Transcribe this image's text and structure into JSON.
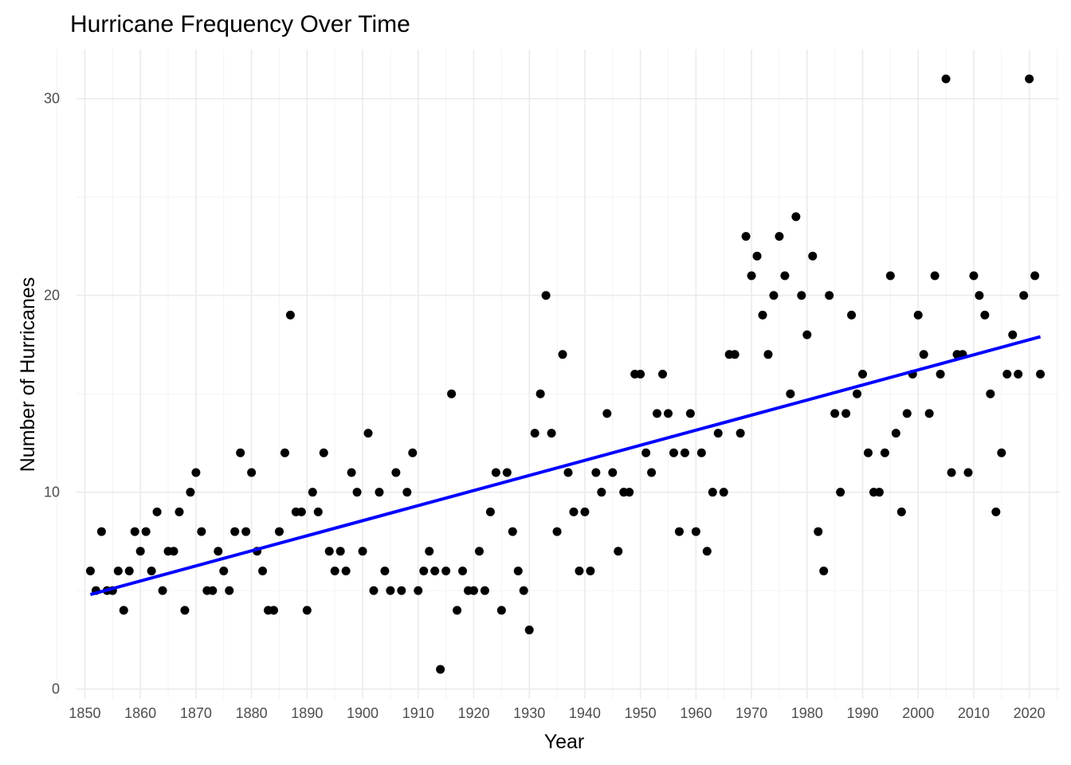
{
  "chart_data": {
    "type": "scatter",
    "title": "Hurricane Frequency Over Time",
    "xlabel": "Year",
    "ylabel": "Number of Hurricanes",
    "xlim": [
      1848.5,
      2025.5
    ],
    "ylim": [
      -0.5,
      32.5
    ],
    "x_ticks": [
      "1850",
      "1860",
      "1870",
      "1880",
      "1890",
      "1900",
      "1910",
      "1920",
      "1930",
      "1940",
      "1950",
      "1960",
      "1970",
      "1980",
      "1990",
      "2000",
      "2010",
      "2020"
    ],
    "y_ticks": [
      "0",
      "10",
      "20",
      "30"
    ],
    "grid": true,
    "legend": "none",
    "colors": {
      "points": "#000000",
      "trend": "#0000ff",
      "grid_major": "#ebebeb",
      "grid_minor": "#f3f3f3"
    },
    "trend_line": {
      "x": [
        1851,
        2022
      ],
      "y": [
        4.8,
        17.9
      ]
    },
    "points": [
      {
        "x": 1851,
        "y": 6
      },
      {
        "x": 1852,
        "y": 5
      },
      {
        "x": 1853,
        "y": 8
      },
      {
        "x": 1854,
        "y": 5
      },
      {
        "x": 1855,
        "y": 5
      },
      {
        "x": 1856,
        "y": 6
      },
      {
        "x": 1857,
        "y": 4
      },
      {
        "x": 1858,
        "y": 6
      },
      {
        "x": 1859,
        "y": 8
      },
      {
        "x": 1860,
        "y": 7
      },
      {
        "x": 1861,
        "y": 8
      },
      {
        "x": 1862,
        "y": 6
      },
      {
        "x": 1863,
        "y": 9
      },
      {
        "x": 1864,
        "y": 5
      },
      {
        "x": 1865,
        "y": 7
      },
      {
        "x": 1866,
        "y": 7
      },
      {
        "x": 1867,
        "y": 9
      },
      {
        "x": 1868,
        "y": 4
      },
      {
        "x": 1869,
        "y": 10
      },
      {
        "x": 1870,
        "y": 11
      },
      {
        "x": 1871,
        "y": 8
      },
      {
        "x": 1872,
        "y": 5
      },
      {
        "x": 1873,
        "y": 5
      },
      {
        "x": 1874,
        "y": 7
      },
      {
        "x": 1875,
        "y": 6
      },
      {
        "x": 1876,
        "y": 5
      },
      {
        "x": 1877,
        "y": 8
      },
      {
        "x": 1878,
        "y": 12
      },
      {
        "x": 1879,
        "y": 8
      },
      {
        "x": 1880,
        "y": 11
      },
      {
        "x": 1881,
        "y": 7
      },
      {
        "x": 1882,
        "y": 6
      },
      {
        "x": 1883,
        "y": 4
      },
      {
        "x": 1884,
        "y": 4
      },
      {
        "x": 1885,
        "y": 8
      },
      {
        "x": 1886,
        "y": 12
      },
      {
        "x": 1887,
        "y": 19
      },
      {
        "x": 1888,
        "y": 9
      },
      {
        "x": 1889,
        "y": 9
      },
      {
        "x": 1890,
        "y": 4
      },
      {
        "x": 1891,
        "y": 10
      },
      {
        "x": 1892,
        "y": 9
      },
      {
        "x": 1893,
        "y": 12
      },
      {
        "x": 1894,
        "y": 7
      },
      {
        "x": 1895,
        "y": 6
      },
      {
        "x": 1896,
        "y": 7
      },
      {
        "x": 1897,
        "y": 6
      },
      {
        "x": 1898,
        "y": 11
      },
      {
        "x": 1899,
        "y": 10
      },
      {
        "x": 1900,
        "y": 7
      },
      {
        "x": 1901,
        "y": 13
      },
      {
        "x": 1902,
        "y": 5
      },
      {
        "x": 1903,
        "y": 10
      },
      {
        "x": 1904,
        "y": 6
      },
      {
        "x": 1905,
        "y": 5
      },
      {
        "x": 1906,
        "y": 11
      },
      {
        "x": 1907,
        "y": 5
      },
      {
        "x": 1908,
        "y": 10
      },
      {
        "x": 1909,
        "y": 12
      },
      {
        "x": 1910,
        "y": 5
      },
      {
        "x": 1911,
        "y": 6
      },
      {
        "x": 1912,
        "y": 7
      },
      {
        "x": 1913,
        "y": 6
      },
      {
        "x": 1914,
        "y": 1
      },
      {
        "x": 1915,
        "y": 6
      },
      {
        "x": 1916,
        "y": 15
      },
      {
        "x": 1917,
        "y": 4
      },
      {
        "x": 1918,
        "y": 6
      },
      {
        "x": 1919,
        "y": 5
      },
      {
        "x": 1920,
        "y": 5
      },
      {
        "x": 1921,
        "y": 7
      },
      {
        "x": 1922,
        "y": 5
      },
      {
        "x": 1923,
        "y": 9
      },
      {
        "x": 1924,
        "y": 11
      },
      {
        "x": 1925,
        "y": 4
      },
      {
        "x": 1926,
        "y": 11
      },
      {
        "x": 1927,
        "y": 8
      },
      {
        "x": 1928,
        "y": 6
      },
      {
        "x": 1929,
        "y": 5
      },
      {
        "x": 1930,
        "y": 3
      },
      {
        "x": 1931,
        "y": 13
      },
      {
        "x": 1932,
        "y": 15
      },
      {
        "x": 1933,
        "y": 20
      },
      {
        "x": 1934,
        "y": 13
      },
      {
        "x": 1935,
        "y": 8
      },
      {
        "x": 1936,
        "y": 17
      },
      {
        "x": 1937,
        "y": 11
      },
      {
        "x": 1938,
        "y": 9
      },
      {
        "x": 1939,
        "y": 6
      },
      {
        "x": 1940,
        "y": 9
      },
      {
        "x": 1941,
        "y": 6
      },
      {
        "x": 1942,
        "y": 11
      },
      {
        "x": 1943,
        "y": 10
      },
      {
        "x": 1944,
        "y": 14
      },
      {
        "x": 1945,
        "y": 11
      },
      {
        "x": 1946,
        "y": 7
      },
      {
        "x": 1947,
        "y": 10
      },
      {
        "x": 1948,
        "y": 10
      },
      {
        "x": 1949,
        "y": 16
      },
      {
        "x": 1950,
        "y": 16
      },
      {
        "x": 1951,
        "y": 12
      },
      {
        "x": 1952,
        "y": 11
      },
      {
        "x": 1953,
        "y": 14
      },
      {
        "x": 1954,
        "y": 16
      },
      {
        "x": 1955,
        "y": 14
      },
      {
        "x": 1956,
        "y": 12
      },
      {
        "x": 1957,
        "y": 8
      },
      {
        "x": 1958,
        "y": 12
      },
      {
        "x": 1959,
        "y": 14
      },
      {
        "x": 1960,
        "y": 8
      },
      {
        "x": 1961,
        "y": 12
      },
      {
        "x": 1962,
        "y": 7
      },
      {
        "x": 1963,
        "y": 10
      },
      {
        "x": 1964,
        "y": 13
      },
      {
        "x": 1965,
        "y": 10
      },
      {
        "x": 1966,
        "y": 17
      },
      {
        "x": 1967,
        "y": 17
      },
      {
        "x": 1968,
        "y": 13
      },
      {
        "x": 1969,
        "y": 23
      },
      {
        "x": 1970,
        "y": 21
      },
      {
        "x": 1971,
        "y": 22
      },
      {
        "x": 1972,
        "y": 19
      },
      {
        "x": 1973,
        "y": 17
      },
      {
        "x": 1974,
        "y": 20
      },
      {
        "x": 1975,
        "y": 23
      },
      {
        "x": 1976,
        "y": 21
      },
      {
        "x": 1977,
        "y": 15
      },
      {
        "x": 1978,
        "y": 24
      },
      {
        "x": 1979,
        "y": 20
      },
      {
        "x": 1980,
        "y": 18
      },
      {
        "x": 1981,
        "y": 22
      },
      {
        "x": 1982,
        "y": 8
      },
      {
        "x": 1983,
        "y": 6
      },
      {
        "x": 1984,
        "y": 20
      },
      {
        "x": 1985,
        "y": 14
      },
      {
        "x": 1986,
        "y": 10
      },
      {
        "x": 1987,
        "y": 14
      },
      {
        "x": 1988,
        "y": 19
      },
      {
        "x": 1989,
        "y": 15
      },
      {
        "x": 1990,
        "y": 16
      },
      {
        "x": 1991,
        "y": 12
      },
      {
        "x": 1992,
        "y": 10
      },
      {
        "x": 1993,
        "y": 10
      },
      {
        "x": 1994,
        "y": 12
      },
      {
        "x": 1995,
        "y": 21
      },
      {
        "x": 1996,
        "y": 13
      },
      {
        "x": 1997,
        "y": 9
      },
      {
        "x": 1998,
        "y": 14
      },
      {
        "x": 1999,
        "y": 16
      },
      {
        "x": 2000,
        "y": 19
      },
      {
        "x": 2001,
        "y": 17
      },
      {
        "x": 2002,
        "y": 14
      },
      {
        "x": 2003,
        "y": 21
      },
      {
        "x": 2004,
        "y": 16
      },
      {
        "x": 2005,
        "y": 31
      },
      {
        "x": 2006,
        "y": 11
      },
      {
        "x": 2007,
        "y": 17
      },
      {
        "x": 2008,
        "y": 17
      },
      {
        "x": 2009,
        "y": 11
      },
      {
        "x": 2010,
        "y": 21
      },
      {
        "x": 2011,
        "y": 20
      },
      {
        "x": 2012,
        "y": 19
      },
      {
        "x": 2013,
        "y": 15
      },
      {
        "x": 2014,
        "y": 9
      },
      {
        "x": 2015,
        "y": 12
      },
      {
        "x": 2016,
        "y": 16
      },
      {
        "x": 2017,
        "y": 18
      },
      {
        "x": 2018,
        "y": 16
      },
      {
        "x": 2019,
        "y": 20
      },
      {
        "x": 2020,
        "y": 31
      },
      {
        "x": 2021,
        "y": 21
      },
      {
        "x": 2022,
        "y": 16
      }
    ]
  }
}
